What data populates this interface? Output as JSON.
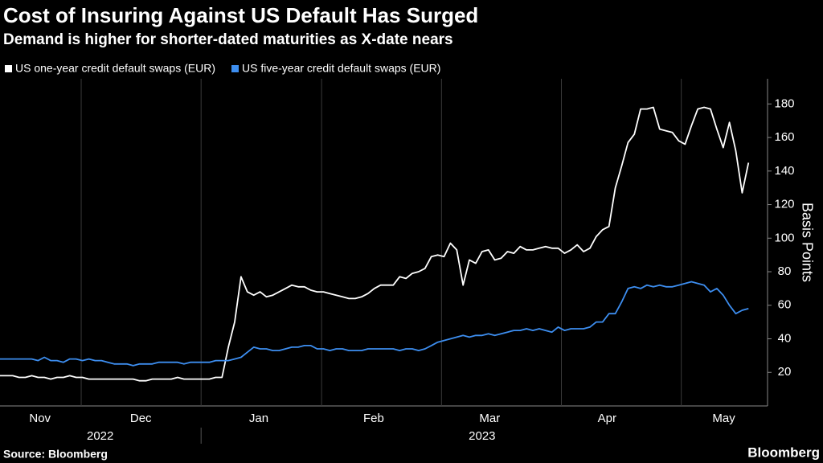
{
  "chart_data": {
    "type": "line",
    "title": "Cost of Insuring Against US Default Has Surged",
    "subtitle": "Demand is higher for shorter-dated maturities as X-date nears",
    "y_label": "Basis Points",
    "source": "Source: Bloomberg",
    "brand": "Bloomberg",
    "ylim": [
      0,
      195
    ],
    "yticks": [
      20,
      40,
      60,
      80,
      100,
      120,
      140,
      160,
      180
    ],
    "xlim": [
      0,
      121
    ],
    "xticks": [
      {
        "value": 6.3,
        "label": "Nov"
      },
      {
        "value": 22.2,
        "label": "Dec"
      },
      {
        "value": 40.8,
        "label": "Jan"
      },
      {
        "value": 58.9,
        "label": "Feb"
      },
      {
        "value": 77.2,
        "label": "Mar"
      },
      {
        "value": 95.7,
        "label": "Apr"
      },
      {
        "value": 114.1,
        "label": "May"
      }
    ],
    "xgrid": [
      12.8,
      31.7,
      50.7,
      69.6,
      88.5,
      107.4
    ],
    "year_labels": [
      {
        "value": 15.8,
        "label": "2022"
      },
      {
        "value": 76,
        "label": "2023"
      }
    ],
    "year_separator": 31.7,
    "series": [
      {
        "name": "US one-year credit default swaps (EUR)",
        "color": "#ffffff",
        "values": [
          18,
          18,
          18,
          17,
          17,
          18,
          17,
          17,
          16,
          17,
          17,
          18,
          17,
          17,
          16,
          16,
          16,
          16,
          16,
          16,
          16,
          16,
          15,
          15,
          16,
          16,
          16,
          16,
          17,
          16,
          16,
          16,
          16,
          16,
          17,
          17,
          35,
          50,
          77,
          68,
          66,
          68,
          65,
          66,
          68,
          70,
          72,
          71,
          71,
          69,
          68,
          68,
          67,
          66,
          65,
          64,
          64,
          65,
          67,
          70,
          72,
          72,
          72,
          77,
          76,
          79,
          80,
          82,
          89,
          90,
          89,
          97,
          93,
          72,
          87,
          85,
          92,
          93,
          87,
          88,
          92,
          91,
          95,
          93,
          93,
          94,
          95,
          94,
          94,
          91,
          93,
          96,
          92,
          94,
          101,
          105,
          107,
          130,
          143,
          157,
          162,
          177,
          177,
          178,
          165,
          164,
          163,
          158,
          156,
          167,
          177,
          178,
          177,
          165,
          154,
          169,
          152,
          127,
          145
        ]
      },
      {
        "name": "US five-year credit default swaps (EUR)",
        "color": "#3d8ef0",
        "values": [
          28,
          28,
          28,
          28,
          28,
          28,
          27,
          29,
          27,
          27,
          26,
          28,
          28,
          27,
          28,
          27,
          27,
          26,
          25,
          25,
          25,
          24,
          25,
          25,
          25,
          26,
          26,
          26,
          26,
          25,
          26,
          26,
          26,
          26,
          27,
          27,
          27,
          28,
          29,
          32,
          35,
          34,
          34,
          33,
          33,
          34,
          35,
          35,
          36,
          36,
          34,
          34,
          33,
          34,
          34,
          33,
          33,
          33,
          34,
          34,
          34,
          34,
          34,
          33,
          34,
          34,
          33,
          34,
          36,
          38,
          39,
          40,
          41,
          42,
          41,
          42,
          42,
          43,
          42,
          43,
          44,
          45,
          45,
          46,
          45,
          46,
          45,
          44,
          47,
          45,
          46,
          46,
          46,
          47,
          50,
          50,
          55,
          55,
          62,
          70,
          71,
          70,
          72,
          71,
          72,
          71,
          71,
          72,
          73,
          74,
          73,
          72,
          68,
          70,
          66,
          60,
          55,
          57,
          58
        ]
      }
    ]
  }
}
